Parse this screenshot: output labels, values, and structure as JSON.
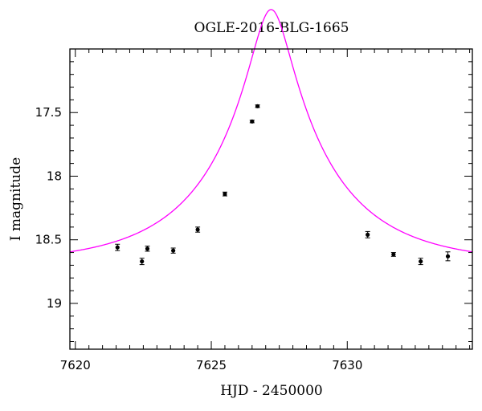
{
  "chart_data": {
    "type": "scatter",
    "title": "OGLE-2016-BLG-1665",
    "xlabel": "HJD - 2450000",
    "ylabel": "I magnitude",
    "xlim": [
      7619.8,
      7634.6
    ],
    "ylim": [
      19.36,
      17.0
    ],
    "y_inverted": true,
    "grid": false,
    "x_major_ticks": [
      7620,
      7625,
      7630
    ],
    "x_tick_labels": [
      "7620",
      "7625",
      "7630"
    ],
    "x_minor_step": 0.5,
    "y_major_ticks": [
      17.5,
      18,
      18.5,
      19
    ],
    "y_tick_labels": [
      "17.5",
      "18",
      "18.5",
      "19"
    ],
    "y_minor_step": 0.1,
    "series": [
      {
        "kind": "data",
        "color": "#000000",
        "points": [
          {
            "x": 7621.55,
            "y": 18.56,
            "err": 0.025
          },
          {
            "x": 7622.45,
            "y": 18.67,
            "err": 0.025
          },
          {
            "x": 7622.65,
            "y": 18.57,
            "err": 0.02
          },
          {
            "x": 7623.6,
            "y": 18.585,
            "err": 0.02
          },
          {
            "x": 7624.5,
            "y": 18.42,
            "err": 0.02
          },
          {
            "x": 7625.5,
            "y": 18.14,
            "err": 0.015
          },
          {
            "x": 7626.5,
            "y": 17.57,
            "err": 0.01
          },
          {
            "x": 7626.7,
            "y": 17.45,
            "err": 0.01
          },
          {
            "x": 7630.75,
            "y": 18.46,
            "err": 0.025
          },
          {
            "x": 7631.7,
            "y": 18.615,
            "err": 0.015
          },
          {
            "x": 7632.7,
            "y": 18.67,
            "err": 0.025
          },
          {
            "x": 7633.7,
            "y": 18.63,
            "err": 0.035
          }
        ]
      },
      {
        "kind": "model",
        "color": "#ff00ff",
        "model": {
          "baseline": 18.69,
          "t0": 7627.2,
          "u0": 0.16,
          "tE": 4.3
        }
      }
    ]
  }
}
